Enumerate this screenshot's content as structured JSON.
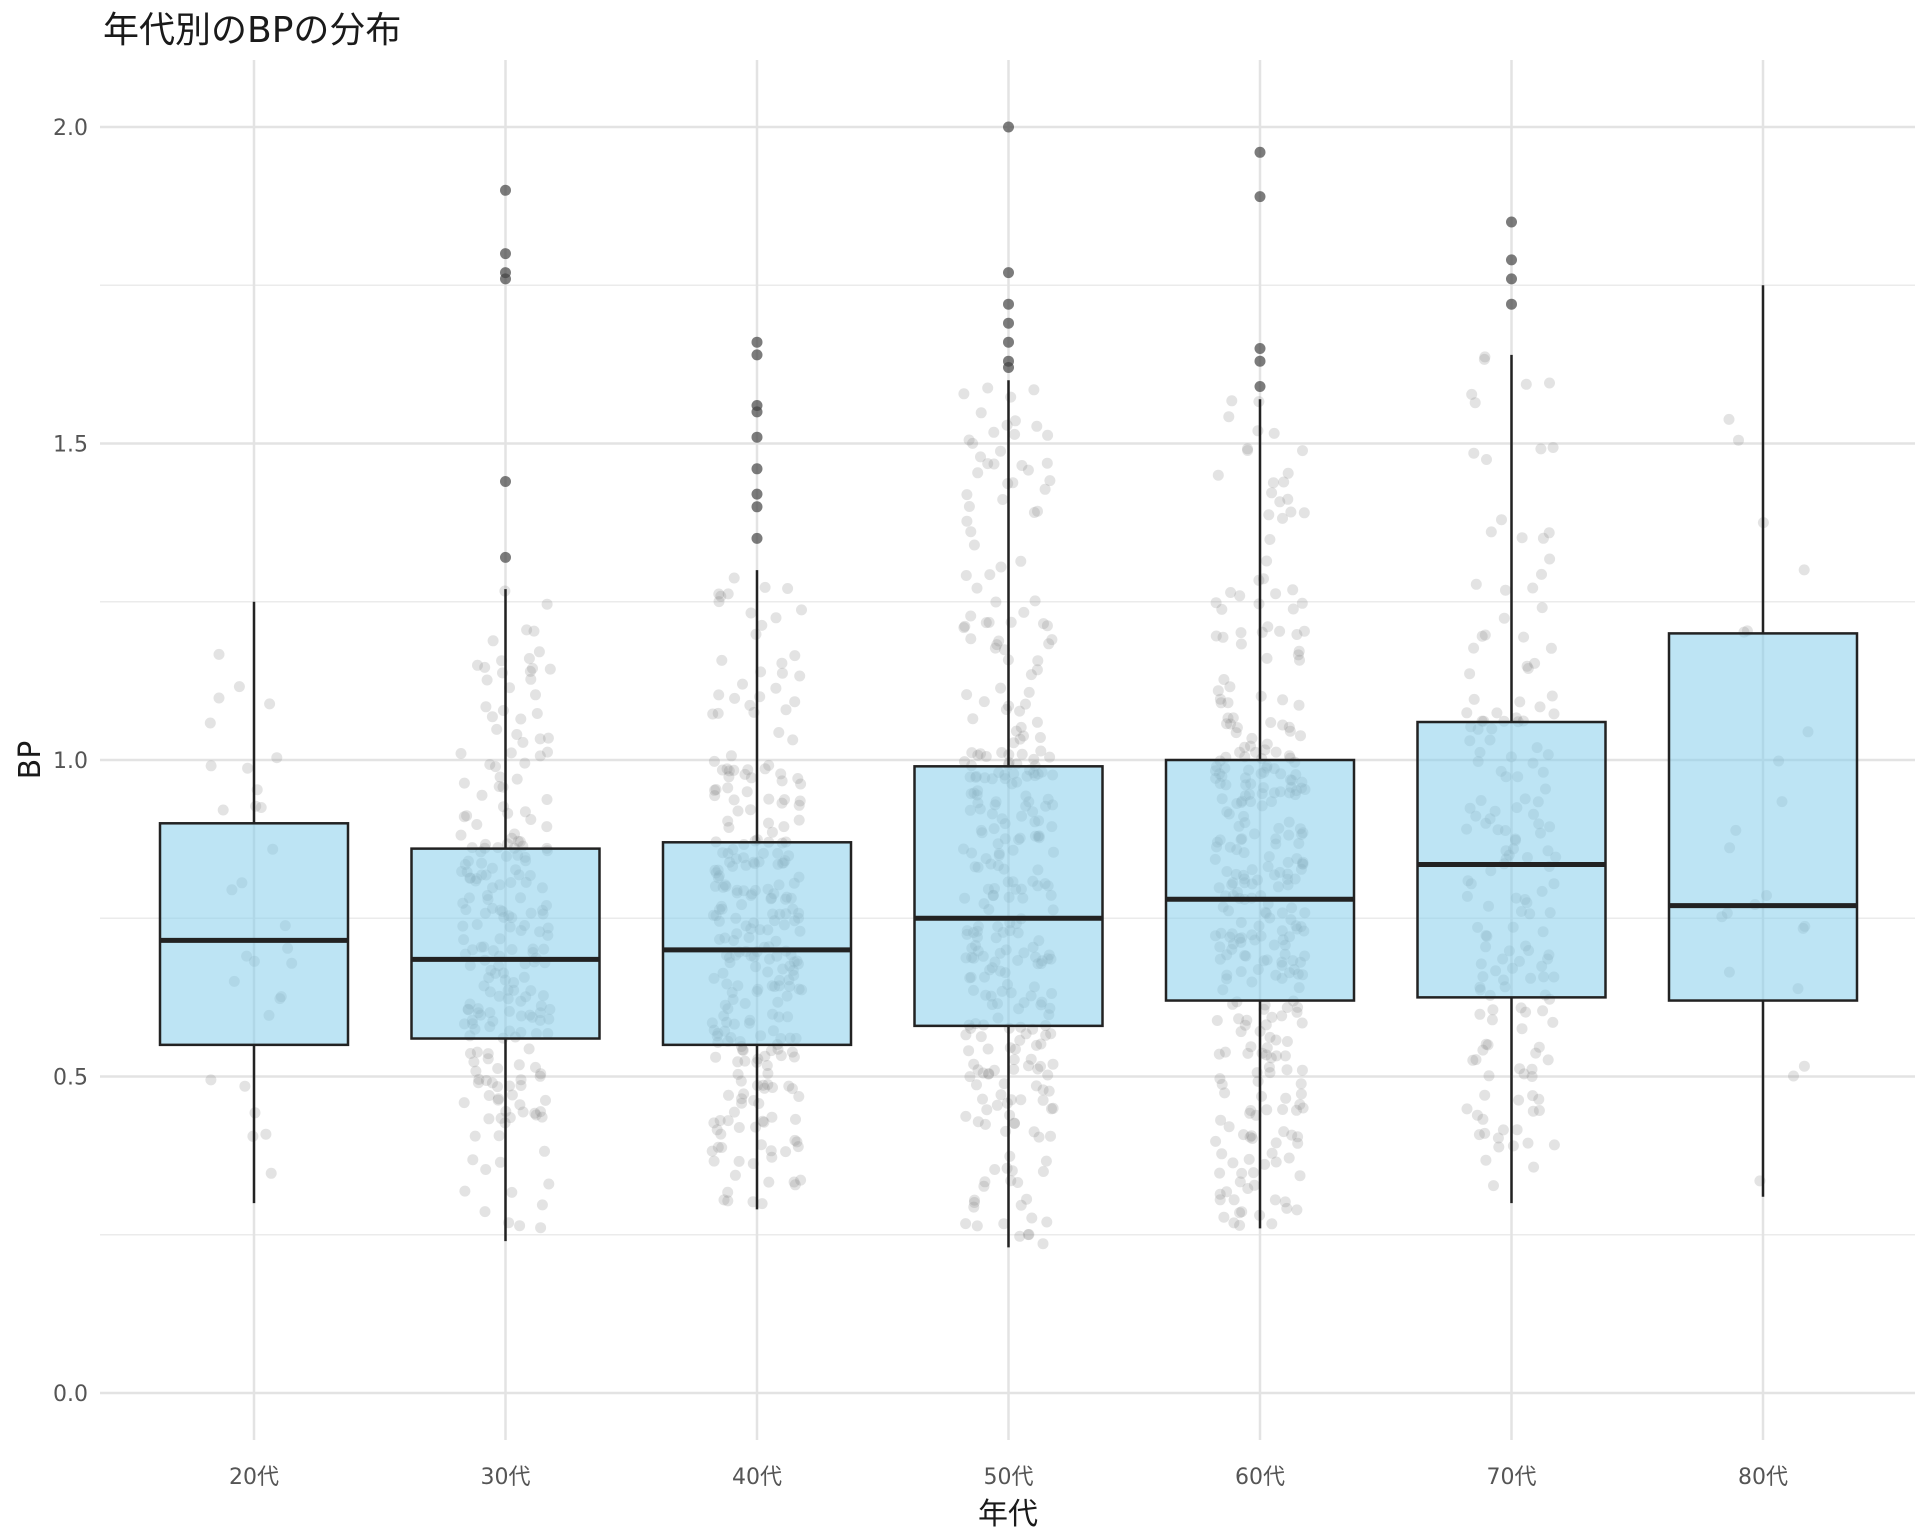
{
  "chart_data": {
    "type": "boxplot",
    "title": "年代別のBPの分布",
    "xlabel": "年代",
    "ylabel": "BP",
    "categories": [
      "20代",
      "30代",
      "40代",
      "50代",
      "60代",
      "70代",
      "80代"
    ],
    "ylim": [
      -0.1,
      2.1
    ],
    "yticks": [
      0.0,
      0.5,
      1.0,
      1.5,
      2.0
    ],
    "ytick_labels": [
      "0.0",
      "0.5",
      "1.0",
      "1.5",
      "2.0"
    ],
    "y_minor_gridlines": [
      0.25,
      0.75,
      1.25,
      1.75
    ],
    "grid": true,
    "box_fill": "#87CEEB",
    "box_stroke": "#222222",
    "point_color": "#808080",
    "boxes": [
      {
        "category": "20代",
        "whisker_low": 0.3,
        "q1": 0.55,
        "median": 0.715,
        "q3": 0.9,
        "whisker_high": 1.25,
        "outliers": []
      },
      {
        "category": "30代",
        "whisker_low": 0.24,
        "q1": 0.56,
        "median": 0.685,
        "q3": 0.86,
        "whisker_high": 1.27,
        "outliers": [
          1.32,
          1.44,
          1.76,
          1.77,
          1.8,
          1.9
        ]
      },
      {
        "category": "40代",
        "whisker_low": 0.29,
        "q1": 0.55,
        "median": 0.7,
        "q3": 0.87,
        "whisker_high": 1.3,
        "outliers": [
          1.35,
          1.4,
          1.42,
          1.46,
          1.51,
          1.55,
          1.56,
          1.64,
          1.66
        ]
      },
      {
        "category": "50代",
        "whisker_low": 0.23,
        "q1": 0.58,
        "median": 0.75,
        "q3": 0.99,
        "whisker_high": 1.6,
        "outliers": [
          1.62,
          1.63,
          1.66,
          1.69,
          1.72,
          1.77,
          2.0
        ]
      },
      {
        "category": "60代",
        "whisker_low": 0.26,
        "q1": 0.62,
        "median": 0.78,
        "q3": 1.0,
        "whisker_high": 1.57,
        "outliers": [
          1.59,
          1.63,
          1.65,
          1.89,
          1.96
        ]
      },
      {
        "category": "70代",
        "whisker_low": 0.3,
        "q1": 0.625,
        "median": 0.835,
        "q3": 1.06,
        "whisker_high": 1.64,
        "outliers": [
          1.72,
          1.76,
          1.79,
          1.85
        ]
      },
      {
        "category": "80代",
        "whisker_low": 0.31,
        "q1": 0.62,
        "median": 0.77,
        "q3": 1.2,
        "whisker_high": 1.75,
        "outliers": []
      }
    ],
    "jitter_points": [
      {
        "category": "20代",
        "n": 30
      },
      {
        "category": "30代",
        "n": 230
      },
      {
        "category": "40代",
        "n": 280
      },
      {
        "category": "50代",
        "n": 320
      },
      {
        "category": "60代",
        "n": 330
      },
      {
        "category": "70代",
        "n": 170
      },
      {
        "category": "80代",
        "n": 22
      }
    ]
  }
}
